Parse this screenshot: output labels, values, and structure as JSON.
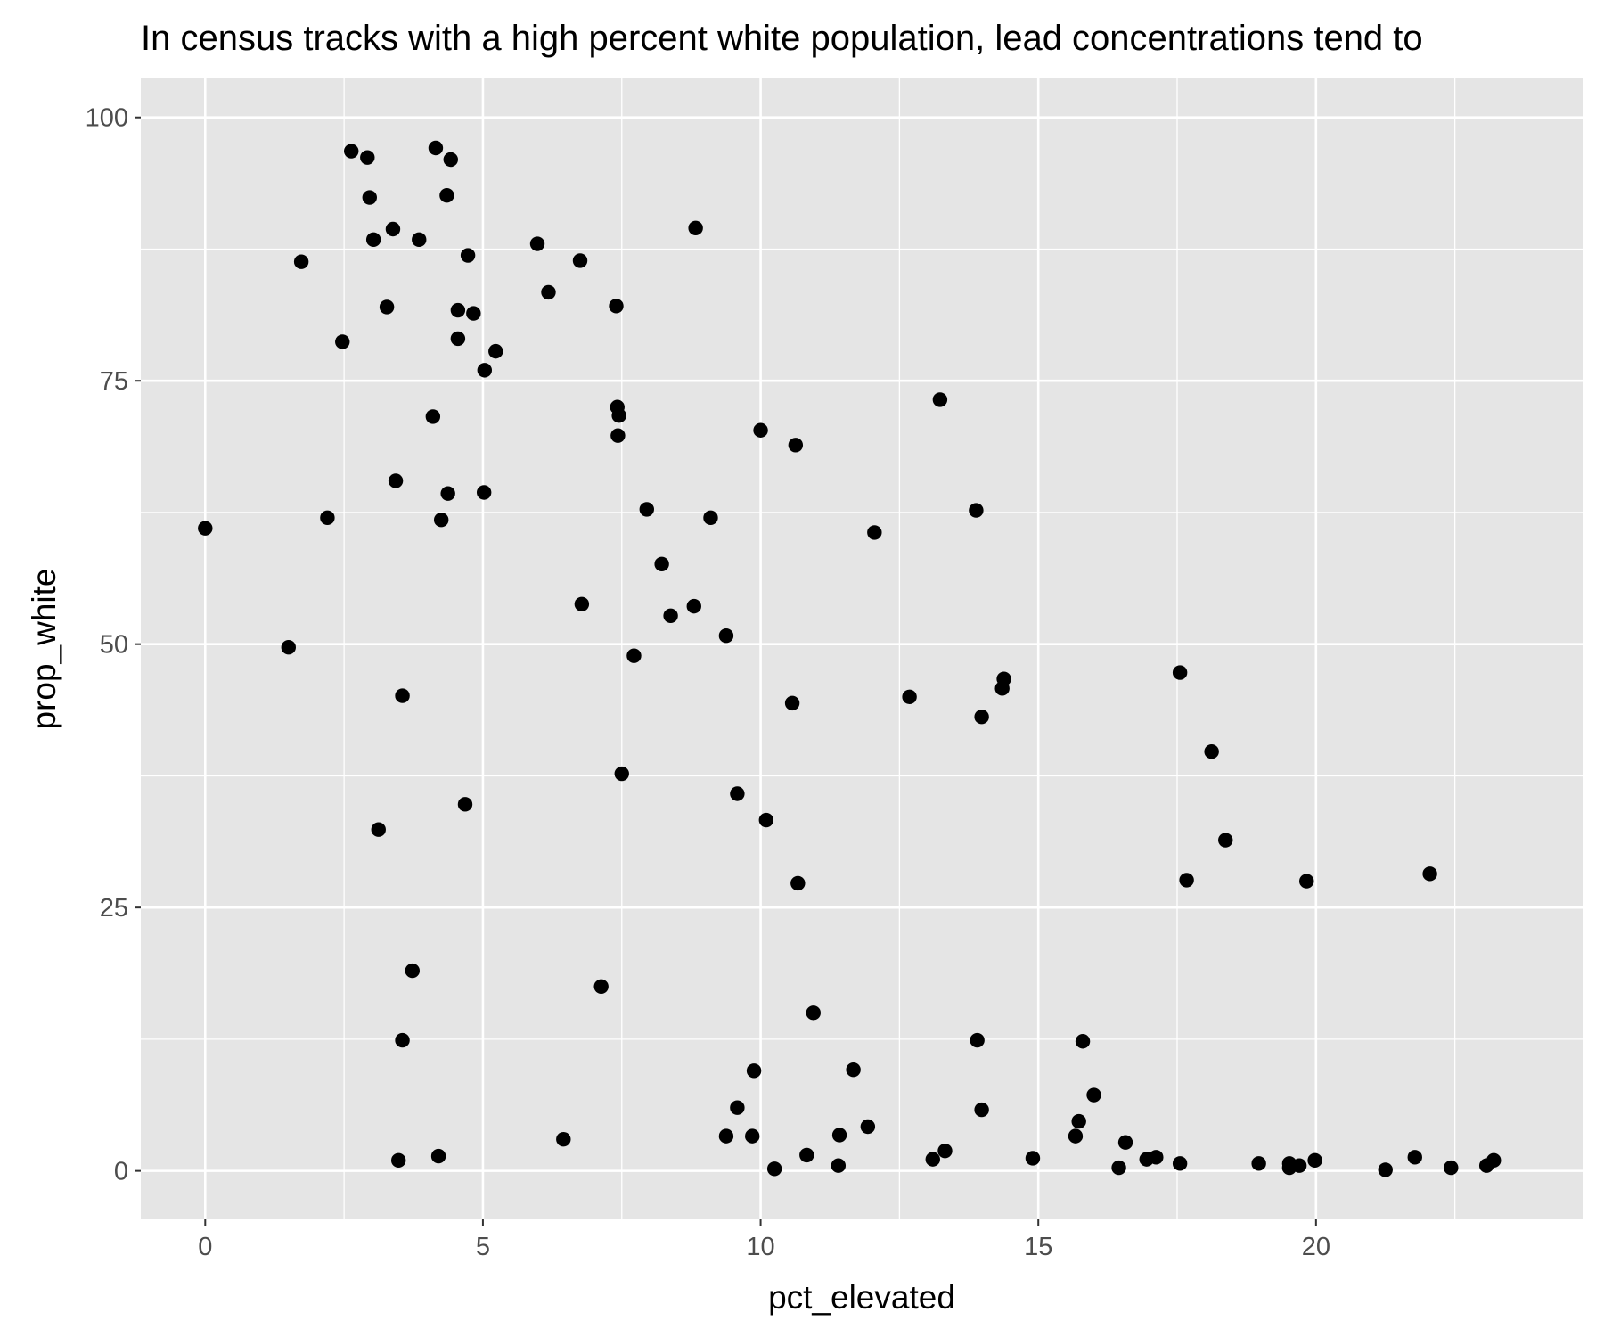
{
  "chart_data": {
    "type": "scatter",
    "title": "In census tracks with a high percent white population, lead concentrations tend to",
    "xlabel": "pct_elevated",
    "ylabel": "prop_white",
    "xlim": [
      -1.16,
      24.8
    ],
    "ylim": [
      -4.6,
      103.7
    ],
    "xticks": [
      0,
      5,
      10,
      15,
      20
    ],
    "yticks": [
      0,
      25,
      50,
      75,
      100
    ],
    "xtick_labels": [
      "0",
      "5",
      "10",
      "15",
      "20"
    ],
    "ytick_labels": [
      "0",
      "25",
      "50",
      "75",
      "100"
    ],
    "grid": true,
    "panel_background": "#E5E5E5",
    "gridline_color": "#FFFFFF",
    "point_color": "#000000",
    "points": [
      {
        "x": 0.0,
        "y": 61.0
      },
      {
        "x": 1.5,
        "y": 49.7
      },
      {
        "x": 1.73,
        "y": 86.3
      },
      {
        "x": 2.2,
        "y": 62.0
      },
      {
        "x": 2.47,
        "y": 78.7
      },
      {
        "x": 2.63,
        "y": 96.8
      },
      {
        "x": 2.92,
        "y": 96.2
      },
      {
        "x": 2.96,
        "y": 92.4
      },
      {
        "x": 3.03,
        "y": 88.4
      },
      {
        "x": 3.12,
        "y": 32.4
      },
      {
        "x": 3.27,
        "y": 82.0
      },
      {
        "x": 3.38,
        "y": 89.4
      },
      {
        "x": 3.43,
        "y": 65.5
      },
      {
        "x": 3.48,
        "y": 1.0
      },
      {
        "x": 3.55,
        "y": 45.1
      },
      {
        "x": 3.55,
        "y": 12.4
      },
      {
        "x": 3.73,
        "y": 19.0
      },
      {
        "x": 3.85,
        "y": 88.4
      },
      {
        "x": 4.1,
        "y": 71.6
      },
      {
        "x": 4.15,
        "y": 97.1
      },
      {
        "x": 4.2,
        "y": 1.4
      },
      {
        "x": 4.25,
        "y": 61.8
      },
      {
        "x": 4.35,
        "y": 92.6
      },
      {
        "x": 4.37,
        "y": 64.3
      },
      {
        "x": 4.42,
        "y": 96.0
      },
      {
        "x": 4.55,
        "y": 79.0
      },
      {
        "x": 4.55,
        "y": 81.7
      },
      {
        "x": 4.68,
        "y": 34.8
      },
      {
        "x": 4.73,
        "y": 86.9
      },
      {
        "x": 4.83,
        "y": 81.4
      },
      {
        "x": 5.02,
        "y": 64.4
      },
      {
        "x": 5.03,
        "y": 76.0
      },
      {
        "x": 5.23,
        "y": 77.8
      },
      {
        "x": 5.98,
        "y": 88.0
      },
      {
        "x": 6.18,
        "y": 83.4
      },
      {
        "x": 6.45,
        "y": 3.0
      },
      {
        "x": 6.75,
        "y": 86.4
      },
      {
        "x": 6.78,
        "y": 53.8
      },
      {
        "x": 7.13,
        "y": 17.5
      },
      {
        "x": 7.4,
        "y": 82.1
      },
      {
        "x": 7.42,
        "y": 72.5
      },
      {
        "x": 7.45,
        "y": 71.7
      },
      {
        "x": 7.43,
        "y": 69.8
      },
      {
        "x": 7.5,
        "y": 37.7
      },
      {
        "x": 7.72,
        "y": 48.9
      },
      {
        "x": 7.95,
        "y": 62.8
      },
      {
        "x": 8.22,
        "y": 57.6
      },
      {
        "x": 8.38,
        "y": 52.7
      },
      {
        "x": 8.8,
        "y": 53.6
      },
      {
        "x": 8.83,
        "y": 89.5
      },
      {
        "x": 9.1,
        "y": 62.0
      },
      {
        "x": 9.38,
        "y": 50.8
      },
      {
        "x": 9.38,
        "y": 3.3
      },
      {
        "x": 9.58,
        "y": 35.8
      },
      {
        "x": 9.58,
        "y": 6.0
      },
      {
        "x": 9.85,
        "y": 3.3
      },
      {
        "x": 9.88,
        "y": 9.5
      },
      {
        "x": 10.0,
        "y": 70.3
      },
      {
        "x": 10.1,
        "y": 33.3
      },
      {
        "x": 10.25,
        "y": 0.2
      },
      {
        "x": 10.57,
        "y": 44.4
      },
      {
        "x": 10.63,
        "y": 68.9
      },
      {
        "x": 10.67,
        "y": 27.3
      },
      {
        "x": 10.83,
        "y": 1.5
      },
      {
        "x": 10.95,
        "y": 15.0
      },
      {
        "x": 11.4,
        "y": 0.5
      },
      {
        "x": 11.42,
        "y": 3.4
      },
      {
        "x": 11.67,
        "y": 9.6
      },
      {
        "x": 11.93,
        "y": 4.2
      },
      {
        "x": 12.05,
        "y": 60.6
      },
      {
        "x": 12.68,
        "y": 45.0
      },
      {
        "x": 13.1,
        "y": 1.1
      },
      {
        "x": 13.23,
        "y": 73.2
      },
      {
        "x": 13.32,
        "y": 1.9
      },
      {
        "x": 13.88,
        "y": 62.7
      },
      {
        "x": 13.9,
        "y": 12.4
      },
      {
        "x": 13.98,
        "y": 43.1
      },
      {
        "x": 13.98,
        "y": 5.8
      },
      {
        "x": 14.35,
        "y": 45.8
      },
      {
        "x": 14.38,
        "y": 46.7
      },
      {
        "x": 14.9,
        "y": 1.2
      },
      {
        "x": 15.67,
        "y": 3.3
      },
      {
        "x": 15.73,
        "y": 4.7
      },
      {
        "x": 15.8,
        "y": 12.3
      },
      {
        "x": 16.0,
        "y": 7.2
      },
      {
        "x": 16.45,
        "y": 0.3
      },
      {
        "x": 16.57,
        "y": 2.7
      },
      {
        "x": 16.95,
        "y": 1.1
      },
      {
        "x": 17.12,
        "y": 1.3
      },
      {
        "x": 17.55,
        "y": 47.3
      },
      {
        "x": 17.55,
        "y": 0.7
      },
      {
        "x": 17.67,
        "y": 27.6
      },
      {
        "x": 18.12,
        "y": 39.8
      },
      {
        "x": 18.37,
        "y": 31.4
      },
      {
        "x": 18.97,
        "y": 0.7
      },
      {
        "x": 19.52,
        "y": 0.7
      },
      {
        "x": 19.52,
        "y": 0.3
      },
      {
        "x": 19.7,
        "y": 0.5
      },
      {
        "x": 19.83,
        "y": 27.5
      },
      {
        "x": 19.98,
        "y": 1.0
      },
      {
        "x": 21.25,
        "y": 0.1
      },
      {
        "x": 21.78,
        "y": 1.3
      },
      {
        "x": 22.05,
        "y": 28.2
      },
      {
        "x": 22.43,
        "y": 0.3
      },
      {
        "x": 23.07,
        "y": 0.5
      },
      {
        "x": 23.2,
        "y": 1.0
      }
    ]
  }
}
